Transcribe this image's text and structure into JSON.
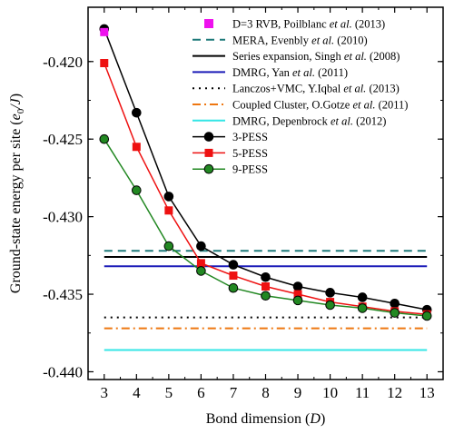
{
  "chart_data": {
    "type": "line",
    "xlabel": "Bond dimension (D)",
    "ylabel": "Ground-state energy per site (e0/J)",
    "xlim": [
      2.5,
      13.5
    ],
    "ylim": [
      -0.4405,
      -0.4165
    ],
    "x_ticks": [
      3,
      4,
      5,
      6,
      7,
      8,
      9,
      10,
      11,
      12,
      13
    ],
    "y_ticks": [
      -0.44,
      -0.435,
      -0.43,
      -0.425,
      -0.42
    ],
    "y_tick_labels": [
      "-0.440",
      "-0.435",
      "-0.430",
      "-0.425",
      "-0.420"
    ],
    "legend_position": "top-right",
    "reference_points": [
      {
        "name": "D=3 RVB, Poilblanc et al. (2013)",
        "x": 3,
        "y": -0.4181,
        "color": "#ee11ee",
        "marker": "square"
      }
    ],
    "reference_lines": [
      {
        "name": "MERA, Evenbly et al. (2010)",
        "y": -0.4322,
        "color": "#1f7a7a",
        "style": "dashed"
      },
      {
        "name": "Series expansion, Singh et al. (2008)",
        "y": -0.4326,
        "color": "#000000",
        "style": "solid"
      },
      {
        "name": "DMRG, Yan et al. (2011)",
        "y": -0.4332,
        "color": "#1c1cb8",
        "style": "solid"
      },
      {
        "name": "Lanczos+VMC, Y.Iqbal et al. (2013)",
        "y": -0.4365,
        "color": "#000000",
        "style": "dotted"
      },
      {
        "name": "Coupled Cluster, O.Gotze et al. (2011)",
        "y": -0.4372,
        "color": "#ee7711",
        "style": "dashdot"
      },
      {
        "name": "DMRG, Depenbrock et al. (2012)",
        "y": -0.4386,
        "color": "#33e6e6",
        "style": "solid"
      }
    ],
    "series": [
      {
        "name": "3-PESS",
        "color": "#000000",
        "marker": "circle",
        "x": [
          3,
          4,
          5,
          6,
          7,
          8,
          9,
          10,
          11,
          12,
          13
        ],
        "y": [
          -0.4179,
          -0.4233,
          -0.4287,
          -0.4319,
          -0.4331,
          -0.4339,
          -0.4345,
          -0.4349,
          -0.4352,
          -0.4356,
          -0.436
        ]
      },
      {
        "name": "5-PESS",
        "color": "#ee1111",
        "marker": "square",
        "x": [
          3,
          4,
          5,
          6,
          7,
          8,
          9,
          10,
          11,
          12,
          13
        ],
        "y": [
          -0.4201,
          -0.4255,
          -0.4296,
          -0.433,
          -0.4338,
          -0.4345,
          -0.435,
          -0.4355,
          -0.4358,
          -0.4361,
          -0.4363
        ]
      },
      {
        "name": "9-PESS",
        "color": "#228822",
        "marker": "circle",
        "x": [
          3,
          4,
          5,
          6,
          7,
          8,
          9,
          10,
          11,
          12,
          13
        ],
        "y": [
          -0.425,
          -0.4283,
          -0.4319,
          -0.4335,
          -0.4346,
          -0.4351,
          -0.4354,
          -0.4357,
          -0.4359,
          -0.4362,
          -0.4364
        ]
      }
    ]
  }
}
